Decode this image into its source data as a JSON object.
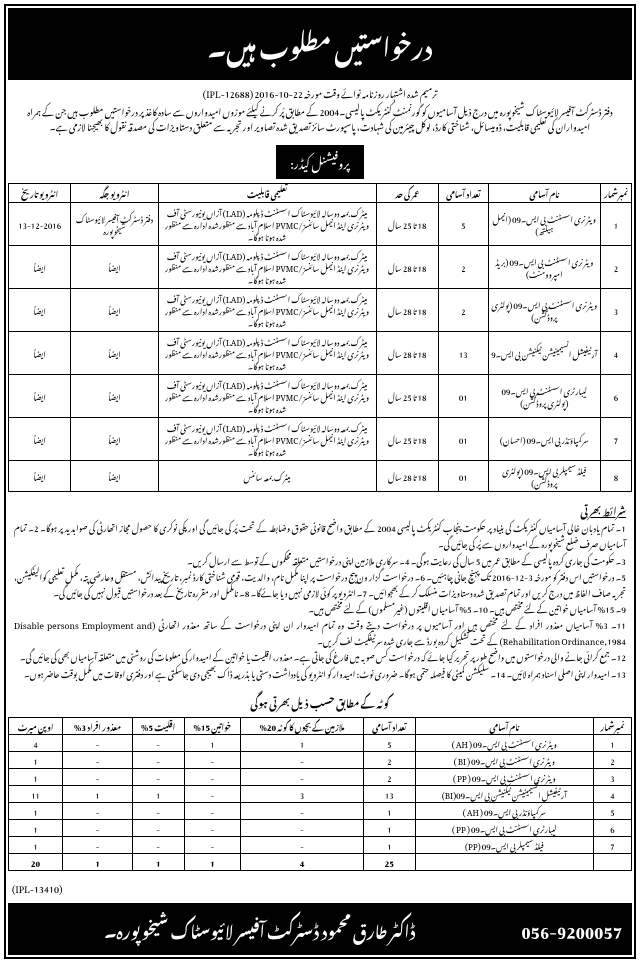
{
  "header": {
    "title": "درخواستیں مطلوب ہیں۔",
    "correction_line": "ترمیم شدہ اشتہار روزنامہ نوائے وقت مورخہ 22-10-2016 (IPL-12688)",
    "intro": "دفتر ڈسٹرکٹ آفیسر لائیوسٹاک شیخوپورہ میں درج ذیل آسامیوں کو گورنمنٹ کنٹریکٹ پالیسی۔2004 کے مطابق پُر کرنے کیلئے موزوں امیدواروں سے سادہ کاغذ پر درخواستیں مطلوب ہیں جن کے ہمراہ امیدواران کی تعلیمی قابلیت، ڈومیسائل، شناختی کارڈ، لوکل چیئرمین کی شہادت، پاسپورٹ سائز تصدیق شدہ تصاویر اور تجربہ سے متعلق دستاویزات کی مصدقہ نقول کا بھیجنا لازمی ہے۔",
    "cadre": "پروفیشنل کیڈر:"
  },
  "table1": {
    "headers": [
      "نمبرشمار",
      "نام آسامی",
      "تعداد آسامی",
      "عمر کی حد",
      "تعلیمی قابلیت",
      "انٹرویو جگہ",
      "انٹرویو تاریخ"
    ],
    "rows": [
      {
        "sr": "1",
        "name": "ویٹرنری اسسٹنٹ بی ایس۔09 (انیمل ہیلتھ)",
        "count": "5",
        "age": "18 تا 25 سال",
        "qual": "میٹرک بمعہ دوسالہ لائیوسٹاک اسسٹنٹ ڈپلومہ (LAD) آزاں یونیورسٹی آف ویٹرنری اینڈ انیمل سائنسز/PVMC اسلام آباد سے منظورشدہ ادارہ سے منظور شدہ ہونا ہوگا۔",
        "place": "دفتر ڈسٹرکٹ آفیسر لائیوسٹاک شیخوپورہ",
        "date": "13-12-2016"
      },
      {
        "sr": "2",
        "name": "ویٹرنری اسسٹنٹ بی ایس۔09 (بریڈ امپروومنٹ)",
        "count": "2",
        "age": "18 تا 28 سال",
        "qual": "میٹرک بمعہ دوسالہ لائیوسٹاک اسسٹنٹ ڈپلومہ (LAD) آزاں یونیورسٹی آف ویٹرنری اینڈ انیمل سائنسز/PVMC اسلام آباد سے منظورشدہ ادارہ سے منظور شدہ ہونا ہوگا۔",
        "place": "ایضاً",
        "date": "ایضاً"
      },
      {
        "sr": "3",
        "name": "ویٹرنری اسسٹنٹ بی ایس۔09 (پولٹری پروڈکشن)",
        "count": "2",
        "age": "18 تا 28 سال",
        "qual": "میٹرک بمعہ دوسالہ لائیوسٹاک اسسٹنٹ ڈپلومہ (LAD) آزاں یونیورسٹی آف ویٹرنری اینڈ انیمل سائنسز/PVMC اسلام آباد سے منظورشدہ ادارہ سے منظور شدہ ہونا ہوگا۔",
        "place": "ایضاً",
        "date": "ایضاً"
      },
      {
        "sr": "4",
        "name": "آرٹیفیشل انسیمینیشن ٹیکنیشن بی ایس۔9",
        "count": "13",
        "age": "18 تا 28 سال",
        "qual": "میٹرک بمعہ دوسالہ لائیوسٹاک اسسٹنٹ ڈپلومہ (LAD) آزاں یونیورسٹی آف ویٹرنری اینڈ انیمل سائنسز/PVMC اسلام آباد سے منظورشدہ ادارہ سے منظور شدہ ہونا ہوگا۔",
        "place": "ایضاً",
        "date": "ایضاً"
      },
      {
        "sr": "6",
        "name": "لیبارٹری اسسٹنٹ بی ایس۔09 (پولٹری پروڈکشن)",
        "count": "01",
        "age": "18 تا 25 سال",
        "qual": "میٹرک بمعہ دوسالہ لائیوسٹاک اسسٹنٹ ڈپلومہ (LAD) آزاں یونیورسٹی آف ویٹرنری اینڈ انیمل سائنسز/PVMC اسلام آباد سے منظورشدہ ادارہ سے منظور شدہ ہونا ہوگا۔",
        "place": "ایضاً",
        "date": "ایضاً"
      },
      {
        "sr": "7",
        "name": "سرکمپاؤنڈر بی ایس۔09 (احسان)",
        "count": "01",
        "age": "18 تا 25 سال",
        "qual": "میٹرک بمعہ دوسالہ لائیوسٹاک اسسٹنٹ ڈپلومہ (LAD) آزاں یونیورسٹی آف ویٹرنری اینڈ انیمل سائنسز/PVMC اسلام آباد سے منظورشدہ ادارہ سے منظور شدہ ہونا ہوگا۔",
        "place": "ایضاً",
        "date": "ایضاً"
      },
      {
        "sr": "8",
        "name": "فیلڈ سیمپلر بی ایس۔09 (پولٹری پروڈکشن)",
        "count": "01",
        "age": "18 تا 28 سال",
        "qual": "میٹرک بمعہ سائنس",
        "place": "ایضاً",
        "date": "ایضاً"
      }
    ]
  },
  "terms": {
    "title": "شرائط بھرتی",
    "items": [
      "1۔ تمام یادبان خالی آسامیاں کنٹریکٹ کی بنیاد پر حکومت پنجاب کنٹریکٹ پالیسی 2004 کے مطابق واضح قانونی حقوق وضابطہ کے تحت پُر کی جائیں گی اور پکی نوکری کا حصول مجاز اتھارٹی کی صوابدید پر ہوگا۔ 2۔ تمام آسامیاں صرف ضلع شیخوپورہ کے امیدواروں سے پُر کی جائیں گی۔",
      "3۔ حکومت کی جاری کردہ پالیسی کے مطابق عمر میں 5 سال کی رعایت ہوگی۔ 4۔ سرکاری ملازمین اپنی درخواستیں متعلقہ محکموں کے توسط سے ارسال کریں۔",
      "5۔ درخواستیں اس دفتر کو مورخہ 3-12-2016 تک پہنچ جانی چاہئیں۔ 6۔ درخواست گزار ون پیج درخواست پر اپنا مکمل نام، والدیت، قومی شناختی کارڈ نمبر، تاریخ پیدائش، مستقل وعارضی پتہ، مکمل تعلیمی کوالیفکیشن، تجربہ صاف الفاظ میں درج کریں اور تمام تصدیق شدہ دستاویزات منسلک کر کے بھجوائیں۔ 7۔ انٹرویو پر کوئی لازمی نہیں دیا جائےگا۔ 8۔ نامکمل اور مقررہ تاریخ کے بعد درخواستیں قبول نہیں کی جائیں گی۔",
      "9۔ 15% آسامیاں خواتین کے لئے مختص ہیں۔ 10۔ 5% آسامیاں اقلیتوں (غیرمسلموں) کے لئے مختص ہیں۔",
      "11۔ 3% آسامیاں معذور افراد کے لئے مختص ہیں اور آسامیوں پر درخواست دیتے وقت وہ تمام امیدوار ان اپنی درخواست کے ساتھ معذور اتھارٹی (Disable persons Employment and Rehabilitation Ordinance,1984) کے تحت تشکیل کردہ بورڈ سے جاری شدہ سرٹیفکیٹ لف کریں۔",
      "12۔ جمع کرائی جانے والی درخواستوں میں واضح طور پر تحریر کیا جائے کہ درخواست کس صوبہ میں فارغ کی جاتی ہے۔ معذور، اقلیت یا خواتین کے امیدوار کی معلومات کی روشنی میں متعلقہ آسامیاں بھی کی جائیں گی۔",
      "13۔ امیدوار اپنی اصلی اسناد ہمراہ لائیں۔ 14۔ سلیکشن کمیٹی کا فیصلہ حتمی ہوگا۔ ضروری نوٹ: امیدوار کو انٹرویو کی یادداشت دستی یا بذریعہ ڈاک بھیجی دی جاسکتی ہے اور دفتری اوقات میں مکمل بوقت حاضر ہوں۔"
    ]
  },
  "quota_heading": "کوٹہ کے مطابق حسب ذیل بھرتی ہوگی",
  "table2": {
    "headers": [
      "نمبرشمار",
      "نام آسامی",
      "تعداد آسامی",
      "ملازمین کے بچوں کا کوٹہ 20%",
      "خواتین 15%",
      "اقلیت 5%",
      "معذور افراد 3%",
      "اوپن میرٹ"
    ],
    "rows": [
      {
        "sr": "1",
        "name": "ویٹرنری اسسٹنٹ بی ایس۔09 ( AH )",
        "c": "5",
        "e": "1",
        "w": "1",
        "m": "-",
        "d": "-",
        "o": "4"
      },
      {
        "sr": "2",
        "name": "ویٹرنری اسسٹنٹ بی ایس۔09 ( BI )",
        "c": "2",
        "e": "-",
        "w": "-",
        "m": "-",
        "d": "-",
        "o": "1"
      },
      {
        "sr": "3",
        "name": "ویٹرنری اسسٹنٹ بی ایس۔09 ( PP )",
        "c": "2",
        "e": "-",
        "w": "-",
        "m": "-",
        "d": "-",
        "o": "1"
      },
      {
        "sr": "4",
        "name": "آرٹیفیشل انسیمینیشن ٹیکنیشن بی ایس۔09(BI)",
        "c": "13",
        "e": "3",
        "w": "-",
        "m": "1",
        "d": "1",
        "o": "11"
      },
      {
        "sr": "5",
        "name": "سرکمپاؤنڈر بی ایس۔09 ( AH )",
        "c": "1",
        "e": "-",
        "w": "-",
        "m": "-",
        "d": "-",
        "o": "1"
      },
      {
        "sr": "6",
        "name": "لیبارٹری اسسٹنٹ بی ایس۔09 ( PP )",
        "c": "1",
        "e": "-",
        "w": "-",
        "m": "-",
        "d": "-",
        "o": "1"
      },
      {
        "sr": "7",
        "name": "فیلڈ سیمپلر بی ایس۔09 (PP)",
        "c": "1",
        "e": "-",
        "w": "-",
        "m": "-",
        "d": "-",
        "o": "1"
      }
    ],
    "totals": {
      "c": "25",
      "e": "4",
      "w": "1",
      "m": "1",
      "d": "1",
      "o": "20"
    }
  },
  "footer": {
    "ipl": "(IPL-13410)",
    "name": "ڈاکٹر طارق محمود ڈسٹرکٹ آفیسر لائیوسٹاک شیخوپورہ۔",
    "phone": "056-9200057"
  }
}
